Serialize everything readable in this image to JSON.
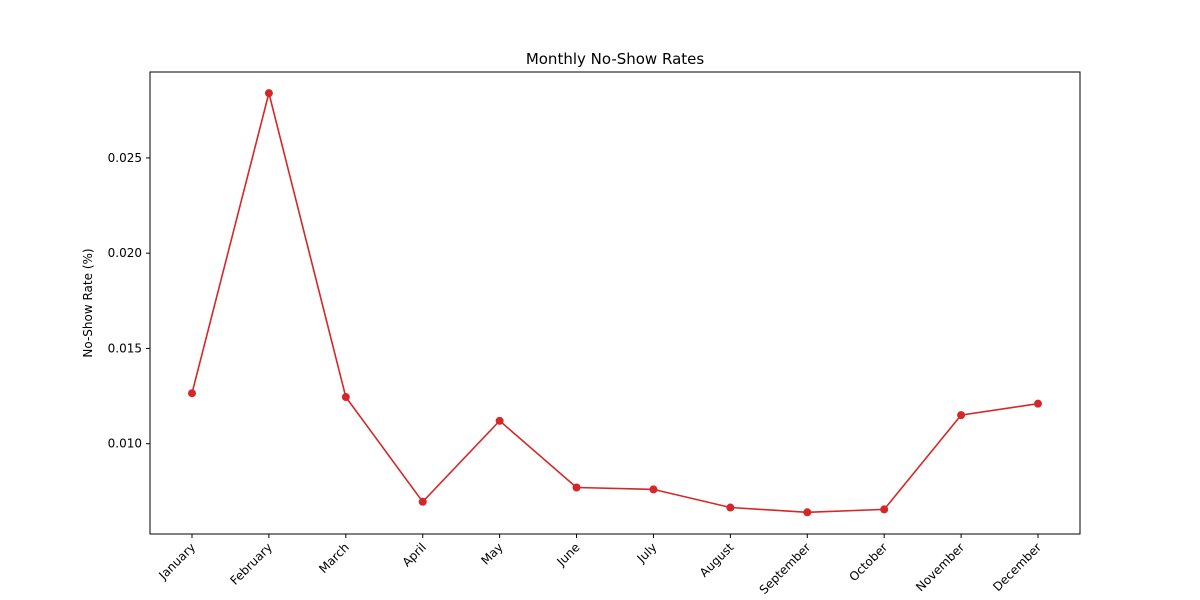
{
  "chart_data": {
    "type": "line",
    "title": "Monthly No-Show Rates",
    "xlabel": "",
    "ylabel": "No-Show Rate (%)",
    "categories": [
      "January",
      "February",
      "March",
      "April",
      "May",
      "June",
      "July",
      "August",
      "September",
      "October",
      "November",
      "December"
    ],
    "series": [
      {
        "values": [
          0.01265,
          0.0284,
          0.01245,
          0.00695,
          0.0112,
          0.0077,
          0.0076,
          0.00665,
          0.0064,
          0.00655,
          0.0115,
          0.0121
        ]
      }
    ],
    "yticks": [
      0.01,
      0.015,
      0.02,
      0.025
    ],
    "ytick_labels": [
      "0.010",
      "0.015",
      "0.020",
      "0.025"
    ],
    "ylim": [
      0.00526,
      0.02951
    ],
    "grid": false,
    "color": "#d62728"
  }
}
